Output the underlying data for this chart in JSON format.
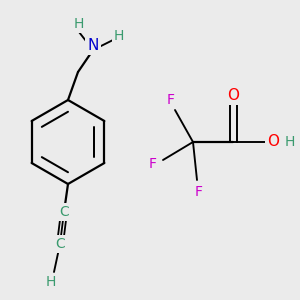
{
  "background_color": "#ebebeb",
  "figsize": [
    3.0,
    3.0
  ],
  "dpi": 100,
  "atom_colors": {
    "N": "#0000cc",
    "O": "#ff0000",
    "F": "#cc00cc",
    "C": "#3a9a6e",
    "H": "#3a9a6e",
    "bond": "#000000"
  },
  "bond_lw": 1.6,
  "font_size": 10
}
